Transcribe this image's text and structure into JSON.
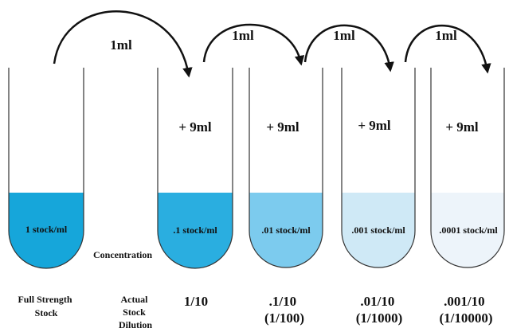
{
  "transfers": [
    "1ml",
    "1ml",
    "1ml",
    "1ml"
  ],
  "tubes": [
    {
      "concentration": "1 stock/ml",
      "addition": null,
      "dilution": [
        "Full Strength",
        "Stock"
      ]
    },
    {
      "concentration": ".1 stock/ml",
      "addition": "+ 9ml",
      "dilution": [
        "1/10"
      ]
    },
    {
      "concentration": ".01 stock/ml",
      "addition": "+ 9ml",
      "dilution": [
        ".1/10",
        "(1/100)"
      ]
    },
    {
      "concentration": ".001 stock/ml",
      "addition": "+ 9ml",
      "dilution": [
        ".01/10",
        "(1/1000)"
      ]
    },
    {
      "concentration": ".0001 stock/ml",
      "addition": "+ 9ml",
      "dilution": [
        ".001/10",
        "(1/10000)"
      ]
    }
  ],
  "concentration_label": "Concentration",
  "dilution_label": [
    "Actual",
    "Stock",
    "Dilution"
  ]
}
